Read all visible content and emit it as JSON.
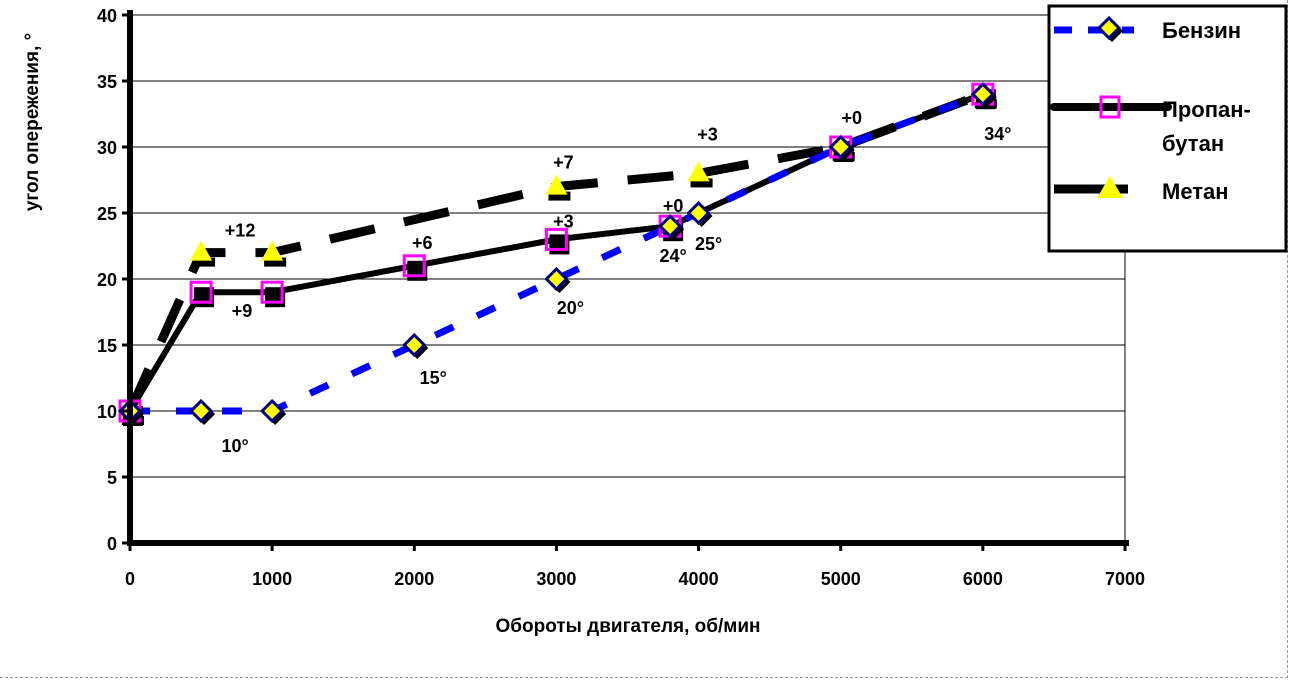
{
  "chart_data": {
    "type": "line",
    "title": "",
    "xlabel": "Обороты двигателя, об/мин",
    "ylabel": "угол опережения, °",
    "xlim": [
      0,
      7000
    ],
    "ylim": [
      0,
      40
    ],
    "xticks": [
      0,
      1000,
      2000,
      3000,
      4000,
      5000,
      6000,
      7000
    ],
    "yticks": [
      0,
      5,
      10,
      15,
      20,
      25,
      30,
      35,
      40
    ],
    "grid": "horizontal",
    "legend_position": "top-right",
    "series": [
      {
        "name": "Бензин",
        "color": "#0000ff",
        "marker": "diamond",
        "marker_fill": "#ffff00",
        "x": [
          0,
          500,
          1000,
          2000,
          3000,
          3800,
          4000,
          5000,
          6000
        ],
        "y": [
          10,
          10,
          10,
          15,
          20,
          24,
          25,
          30,
          34
        ],
        "labels": [
          {
            "x": 500,
            "y": 10,
            "text": "10°"
          },
          {
            "x": 2000,
            "y": 15,
            "text": "15°"
          },
          {
            "x": 3000,
            "y": 20,
            "text": "20°"
          },
          {
            "x": 3800,
            "y": 24,
            "text": "24°"
          },
          {
            "x": 4000,
            "y": 25,
            "text": "25°"
          },
          {
            "x": 6000,
            "y": 34,
            "text": "34°"
          }
        ]
      },
      {
        "name": "Пропан-бутан",
        "color": "#000000",
        "marker": "square",
        "marker_stroke": "#ff00ff",
        "x": [
          0,
          500,
          1000,
          2000,
          3000,
          3800,
          5000,
          6000
        ],
        "y": [
          10,
          19,
          19,
          21,
          23,
          24,
          30,
          34
        ],
        "labels": [
          {
            "x": 500,
            "y": 19,
            "text": "+9"
          },
          {
            "x": 2000,
            "y": 21,
            "text": "+6"
          },
          {
            "x": 3000,
            "y": 23,
            "text": "+3"
          },
          {
            "x": 3800,
            "y": 24,
            "text": "+0"
          }
        ]
      },
      {
        "name": "Метан",
        "color": "#000000",
        "marker": "triangle",
        "marker_fill": "#ffff00",
        "x": [
          0,
          500,
          1000,
          3000,
          4000,
          5000,
          6000
        ],
        "y": [
          10,
          22,
          22,
          27,
          28,
          30,
          34
        ],
        "labels": [
          {
            "x": 500,
            "y": 22,
            "text": "+12"
          },
          {
            "x": 3000,
            "y": 27,
            "text": "+7"
          },
          {
            "x": 4000,
            "y": 28,
            "text": "+3"
          },
          {
            "x": 5000,
            "y": 30,
            "text": "+0"
          }
        ]
      }
    ],
    "legend": {
      "entries": [
        "Бензин",
        "Пропан-",
        "бутан",
        "Метан"
      ]
    }
  }
}
